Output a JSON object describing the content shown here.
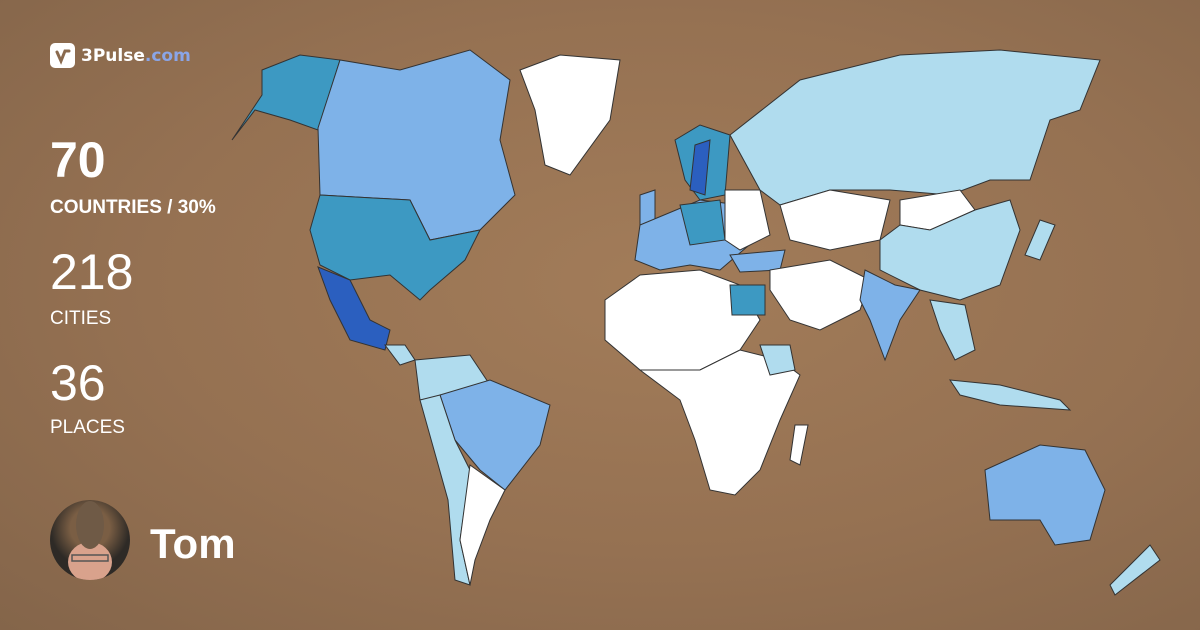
{
  "brand": {
    "name": "3Pulse",
    "suffix": ".com",
    "icon": "check-pulse-icon"
  },
  "stats": {
    "countries": {
      "value": "70",
      "label": "COUNTRIES / 30%",
      "percent": 30
    },
    "cities": {
      "value": "218",
      "label": "CITIES"
    },
    "places": {
      "value": "36",
      "label": "PLACES"
    }
  },
  "user": {
    "name": "Tom",
    "avatar": "profile-photo"
  },
  "map": {
    "legend_colors": {
      "most": "#2b5fbf",
      "high": "#3d99c2",
      "medium": "#7eb2e8",
      "low": "#b0dcee",
      "none": "#ffffff"
    }
  }
}
